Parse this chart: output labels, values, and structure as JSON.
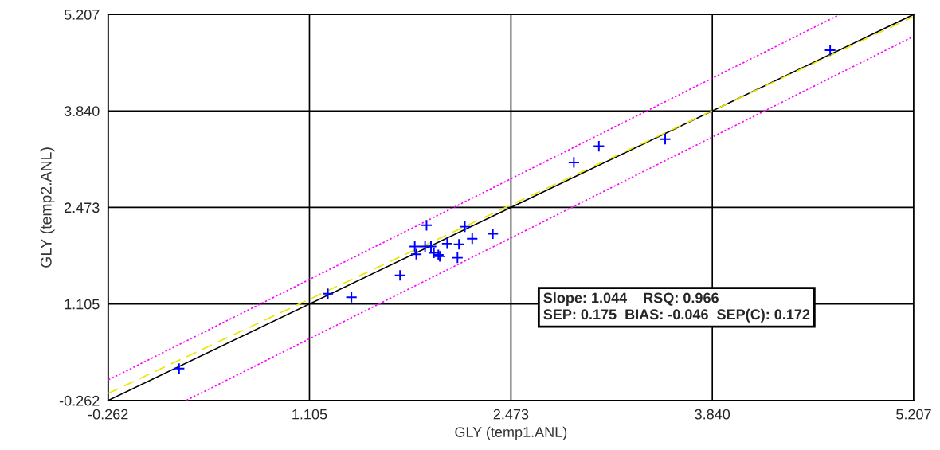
{
  "chart_data": {
    "type": "scatter",
    "xlabel": "GLY (temp1.ANL)",
    "ylabel": "GLY (temp2.ANL)",
    "xlim": [
      -0.262,
      5.207
    ],
    "ylim": [
      -0.262,
      5.207
    ],
    "xticks": [
      -0.262,
      1.105,
      2.473,
      {
        "value": 3.84,
        "label": "3.840"
      },
      5.207
    ],
    "yticks": [
      -0.262,
      1.105,
      2.473,
      {
        "value": 3.84,
        "label": "3.840"
      },
      5.207
    ],
    "grid": true,
    "legend": false,
    "series": [
      {
        "marker": "cross",
        "color": "#0000ff",
        "x": [
          1.9,
          2.16,
          1.82,
          1.89,
          1.93,
          2.04,
          2.12,
          2.21,
          2.35,
          1.83,
          1.95,
          1.98,
          1.99,
          2.11,
          1.72,
          1.23,
          1.39,
          0.22,
          4.64,
          3.07,
          2.9,
          3.52
        ],
        "values": [
          2.22,
          2.2,
          1.92,
          1.92,
          1.92,
          1.96,
          1.95,
          2.03,
          2.1,
          1.81,
          1.83,
          1.8,
          1.78,
          1.76,
          1.51,
          1.25,
          1.2,
          0.19,
          4.7,
          3.34,
          3.11,
          3.44
        ]
      },
      {
        "type": "line",
        "color": "#000000",
        "line_style": "solid",
        "x": [
          -0.26,
          5.2
        ],
        "values": [
          -0.26,
          5.2
        ]
      },
      {
        "type": "line",
        "color": "#e8e800",
        "line_style": "dashed",
        "x": [
          -0.26,
          5.2
        ],
        "values": [
          -0.16,
          5.17
        ]
      },
      {
        "type": "line",
        "color": "#ff00ff",
        "line_style": "dotted",
        "x": [
          -0.26,
          4.7
        ],
        "values": [
          0.03,
          5.2
        ]
      },
      {
        "type": "line",
        "color": "#ff00ff",
        "line_style": "dotted",
        "x": [
          0.27,
          5.2
        ],
        "values": [
          -0.26,
          4.89
        ]
      }
    ],
    "annotations": [
      "Slope: 1.044    RSQ: 0.966\nSEP: 0.175  BIAS: -0.046  SEP(C): 0.172"
    ]
  }
}
